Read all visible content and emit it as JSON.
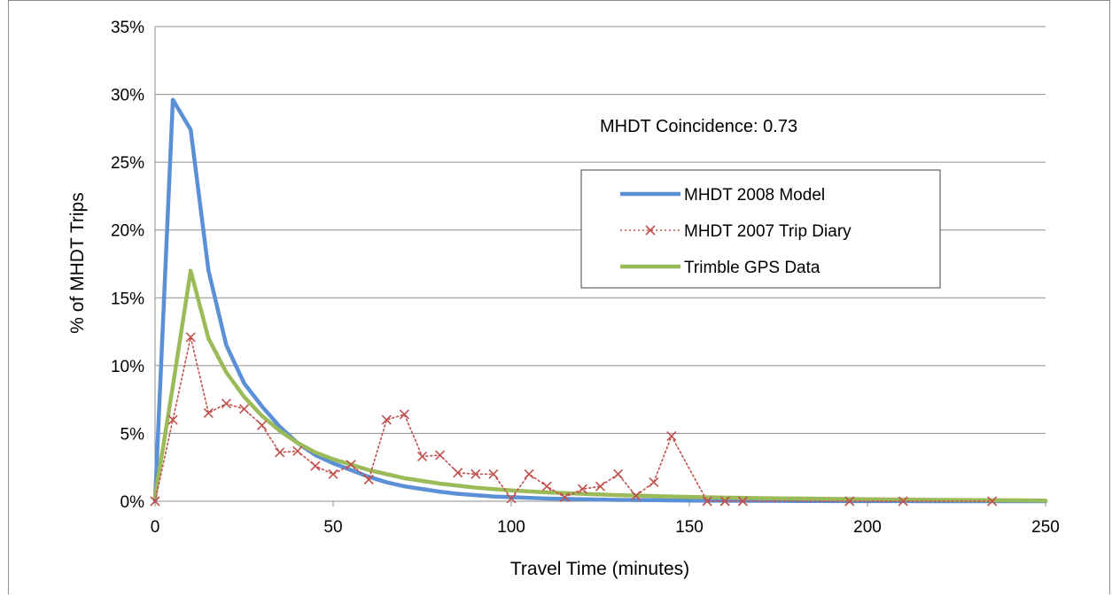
{
  "chart_data": {
    "type": "line",
    "title": "",
    "xlabel": "Travel Time (minutes)",
    "ylabel": "% of MHDT Trips",
    "xlim": [
      0,
      250
    ],
    "ylim": [
      0,
      35
    ],
    "x_ticks": [
      0,
      50,
      100,
      150,
      200,
      250
    ],
    "x_tick_labels": [
      "0",
      "50",
      "100",
      "150",
      "200",
      "250"
    ],
    "y_ticks": [
      0,
      5,
      10,
      15,
      20,
      25,
      30,
      35
    ],
    "y_tick_labels": [
      "0%",
      "5%",
      "10%",
      "15%",
      "20%",
      "25%",
      "30%",
      "35%"
    ],
    "grid": "horizontal",
    "legend_position": "upper-right",
    "annotation": "MHDT Coincidence:  0.73",
    "series": [
      {
        "name": "MHDT 2008 Model",
        "color": "#5b8fd6",
        "style": "solid-thick",
        "x": [
          0,
          5,
          10,
          15,
          20,
          25,
          30,
          35,
          40,
          45,
          50,
          55,
          60,
          65,
          70,
          75,
          80,
          85,
          90,
          95,
          100,
          110,
          120,
          130,
          140,
          150,
          160,
          170,
          180,
          200,
          220,
          250
        ],
        "values": [
          0,
          29.6,
          27.4,
          17.0,
          11.5,
          8.7,
          7.0,
          5.5,
          4.3,
          3.4,
          2.8,
          2.3,
          1.8,
          1.4,
          1.1,
          0.9,
          0.7,
          0.55,
          0.45,
          0.35,
          0.3,
          0.2,
          0.15,
          0.1,
          0.08,
          0.05,
          0.04,
          0.03,
          0.02,
          0.01,
          0.0,
          0.0
        ]
      },
      {
        "name": "MHDT 2007 Trip Diary",
        "color": "#c0504d",
        "style": "dotted-x-marker",
        "x": [
          0,
          5,
          10,
          15,
          20,
          25,
          30,
          35,
          40,
          45,
          50,
          55,
          60,
          65,
          70,
          75,
          80,
          85,
          90,
          95,
          100,
          105,
          110,
          115,
          120,
          125,
          130,
          135,
          140,
          145,
          155,
          160,
          165,
          195,
          210,
          235
        ],
        "values": [
          0,
          6.0,
          12.1,
          6.5,
          7.2,
          6.8,
          5.6,
          3.6,
          3.7,
          2.6,
          2.0,
          2.7,
          1.6,
          6.0,
          6.4,
          3.3,
          3.4,
          2.1,
          2.0,
          2.0,
          0.2,
          2.0,
          1.1,
          0.3,
          0.9,
          1.1,
          2.0,
          0.4,
          1.4,
          4.8,
          0.0,
          0.0,
          0.0,
          0.0,
          0.0,
          0.0
        ]
      },
      {
        "name": "Trimble GPS Data",
        "color": "#9bbb59",
        "style": "solid-thick",
        "x": [
          0,
          5,
          10,
          15,
          20,
          25,
          30,
          35,
          40,
          45,
          50,
          55,
          60,
          65,
          70,
          75,
          80,
          85,
          90,
          95,
          100,
          110,
          120,
          130,
          140,
          150,
          160,
          170,
          180,
          200,
          220,
          250
        ],
        "values": [
          0.3,
          8.5,
          17.0,
          12.0,
          9.5,
          7.7,
          6.3,
          5.2,
          4.3,
          3.6,
          3.1,
          2.7,
          2.3,
          2.0,
          1.7,
          1.5,
          1.3,
          1.15,
          1.0,
          0.9,
          0.8,
          0.65,
          0.55,
          0.45,
          0.38,
          0.32,
          0.27,
          0.23,
          0.2,
          0.15,
          0.1,
          0.05
        ]
      }
    ]
  }
}
